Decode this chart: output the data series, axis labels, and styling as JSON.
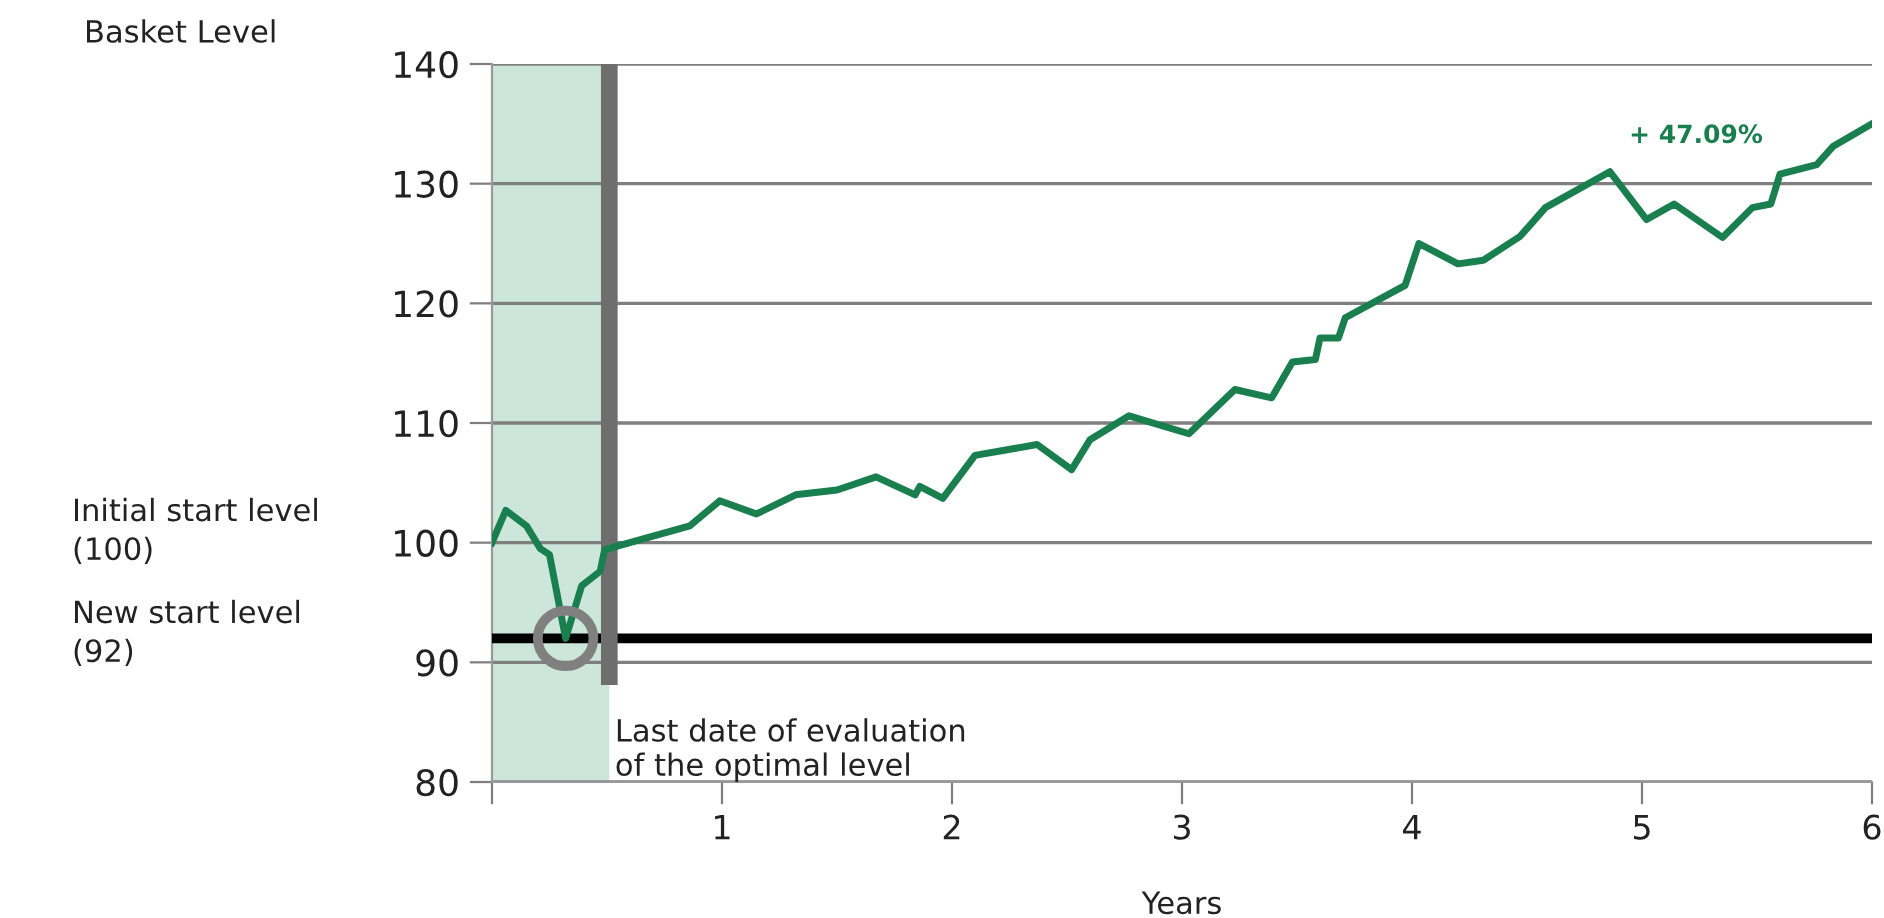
{
  "chart_data": {
    "type": "line",
    "ylabel": "Basket Level",
    "xlabel": "Years",
    "x": [
      0,
      0.06,
      0.15,
      0.21,
      0.25,
      0.32,
      0.39,
      0.47,
      0.49,
      0.56,
      0.86,
      0.99,
      1.15,
      1.32,
      1.5,
      1.67,
      1.84,
      1.86,
      1.96,
      2.1,
      2.37,
      2.52,
      2.6,
      2.77,
      3.03,
      3.23,
      3.39,
      3.48,
      3.58,
      3.6,
      3.68,
      3.71,
      3.97,
      4.03,
      4.2,
      4.31,
      4.47,
      4.58,
      4.86,
      5.02,
      5.14,
      5.35,
      5.48,
      5.56,
      5.6,
      5.76,
      5.83,
      6.0
    ],
    "series": [
      {
        "color": "#1a7f4f",
        "values": [
          100,
          102.7,
          101.4,
          99.5,
          99,
          92,
          96.4,
          97.6,
          99.4,
          99.8,
          101.4,
          103.5,
          102.4,
          104,
          104.4,
          105.5,
          104,
          104.7,
          103.7,
          107.3,
          108.2,
          106.1,
          108.6,
          110.6,
          109.1,
          112.8,
          112.1,
          115.1,
          115.3,
          117.1,
          117.1,
          118.8,
          121.5,
          125,
          123.3,
          123.6,
          125.6,
          128,
          131,
          127,
          128.3,
          125.5,
          128,
          128.3,
          130.8,
          131.6,
          133.1,
          135
        ]
      },
      {
        "type": "scatter",
        "x": [
          0.32
        ],
        "values": [
          92
        ],
        "color": "#808080",
        "marker": "circle"
      }
    ],
    "xlim": [
      0,
      6
    ],
    "xticks": [
      {
        "value": 0,
        "label": null
      },
      1,
      2,
      3,
      4,
      5,
      6
    ],
    "ylim": [
      80,
      140
    ],
    "yticks": [
      80,
      90,
      100,
      110,
      120,
      130,
      140
    ],
    "grid": "y",
    "ref_lines": [
      {
        "axis": "y",
        "value": 92,
        "color": "#000000"
      },
      {
        "axis": "x",
        "value": 0.51,
        "label": "Last date of evaluation\nof the optimal level",
        "color": "#6e6e6e"
      }
    ],
    "bands": [
      {
        "axis": "x",
        "from": 0,
        "to": 0.51,
        "color": "#cde6dc"
      }
    ],
    "annotations": [
      "+ 47.09%",
      "Initial start level\n(100)",
      "New start level\n(92)"
    ]
  }
}
